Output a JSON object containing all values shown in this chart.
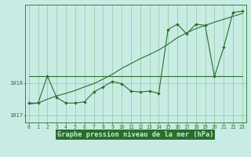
{
  "title": "Graphe pression niveau de la mer (hPa)",
  "hours": [
    0,
    1,
    2,
    3,
    4,
    5,
    6,
    7,
    8,
    9,
    10,
    11,
    12,
    13,
    14,
    15,
    16,
    17,
    18,
    19,
    20,
    21,
    22,
    23
  ],
  "line_flat": {
    "y": [
      1018.2,
      1018.2,
      1018.2,
      1018.2,
      1018.2,
      1018.2,
      1018.2,
      1018.2,
      1018.2,
      1018.2,
      1018.2,
      1018.2,
      1018.2,
      1018.2,
      1018.2,
      1018.2,
      1018.2,
      1018.2,
      1018.2,
      1018.2,
      1018.2,
      1018.2,
      1018.2,
      1018.2
    ],
    "color": "#2a6e2a",
    "linewidth": 0.8
  },
  "line_rising": {
    "y": [
      1017.35,
      1017.38,
      1017.5,
      1017.6,
      1017.68,
      1017.77,
      1017.88,
      1017.98,
      1018.12,
      1018.27,
      1018.45,
      1018.6,
      1018.75,
      1018.88,
      1019.02,
      1019.2,
      1019.4,
      1019.55,
      1019.68,
      1019.78,
      1019.88,
      1019.97,
      1020.06,
      1020.15
    ],
    "color": "#2a6e2a",
    "linewidth": 0.8
  },
  "line_measured": {
    "y": [
      1017.38,
      1017.38,
      1018.22,
      1017.55,
      1017.38,
      1017.38,
      1017.42,
      1017.72,
      1017.88,
      1018.05,
      1017.98,
      1017.75,
      1017.72,
      1017.75,
      1017.68,
      1019.65,
      1019.82,
      1019.52,
      1019.82,
      1019.78,
      1018.2,
      1019.1,
      1020.18,
      1020.22
    ],
    "color": "#2a6e2a",
    "linewidth": 0.8,
    "marker": "D",
    "markersize": 1.8
  },
  "ylim": [
    1016.78,
    1020.42
  ],
  "xlim": [
    -0.4,
    23.4
  ],
  "ytick_positions": [
    1017.0,
    1018.0
  ],
  "ytick_labels": [
    "1017",
    "1018"
  ],
  "bg_color": "#c8ece4",
  "grid_color": "#55a855",
  "line_color": "#2a6e2a",
  "title_bg": "#2a6e2a",
  "title_fg": "#c8ece4",
  "tick_fontsize": 5.0,
  "title_fontsize": 6.2
}
